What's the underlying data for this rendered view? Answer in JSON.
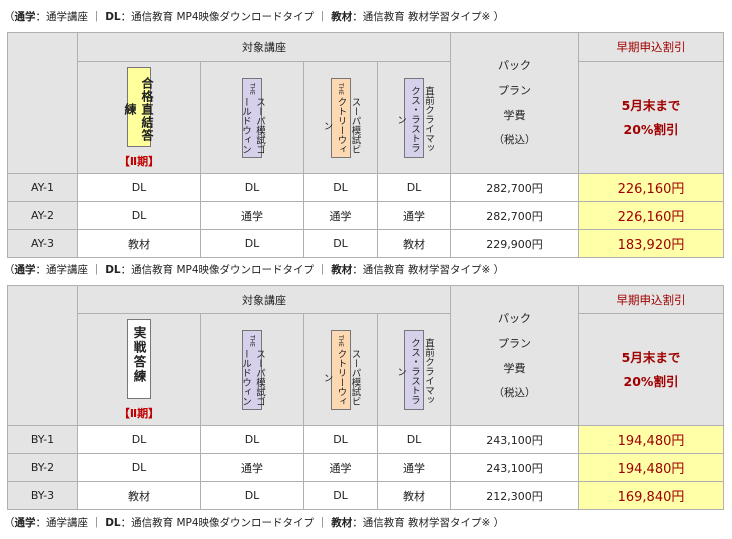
{
  "legend": {
    "p1": "（",
    "k1": "通学",
    "v1": "：通学講座 ｜",
    "k2": "DL",
    "v2": "：通信教育 MP4映像ダウンロードタイプ ｜",
    "k3": "教材",
    "v3": "：通信教育 教材学習タイプ※ ）"
  },
  "headers": {
    "courses": "対象講座",
    "pack_lines": [
      "パック",
      "プラン",
      "学費",
      "（税込）"
    ],
    "early_title": "早期申込割引",
    "early_lines": [
      "5月末まで",
      "20%割引"
    ]
  },
  "course_names": {
    "gokaku": "合格直結答練",
    "jissen": "実戦答練",
    "the": "THE",
    "gold": "スーパ模試ゴールドウィン",
    "victory": "スーパ模試ビクトリーウィン",
    "climax": "直前クライマックス・ラストラン",
    "term": "【Ⅱ期】"
  },
  "tables": [
    {
      "rows": [
        {
          "code": "AY-1",
          "c1": "DL",
          "c2": "DL",
          "c3": "DL",
          "c4": "DL",
          "price": "282,700円",
          "sale": "226,160円"
        },
        {
          "code": "AY-2",
          "c1": "DL",
          "c2": "通学",
          "c3": "通学",
          "c4": "通学",
          "price": "282,700円",
          "sale": "226,160円"
        },
        {
          "code": "AY-3",
          "c1": "教材",
          "c2": "DL",
          "c3": "DL",
          "c4": "教材",
          "price": "229,900円",
          "sale": "183,920円"
        }
      ]
    },
    {
      "rows": [
        {
          "code": "BY-1",
          "c1": "DL",
          "c2": "DL",
          "c3": "DL",
          "c4": "DL",
          "price": "243,100円",
          "sale": "194,480円"
        },
        {
          "code": "BY-2",
          "c1": "DL",
          "c2": "通学",
          "c3": "通学",
          "c4": "通学",
          "price": "243,100円",
          "sale": "194,480円"
        },
        {
          "code": "BY-3",
          "c1": "教材",
          "c2": "DL",
          "c3": "DL",
          "c4": "教材",
          "price": "212,300円",
          "sale": "169,840円"
        }
      ]
    }
  ],
  "colors": {
    "header_bg": "#e4e4e4",
    "sale_bg": "#ffffa8",
    "accent_red": "#a00000"
  }
}
